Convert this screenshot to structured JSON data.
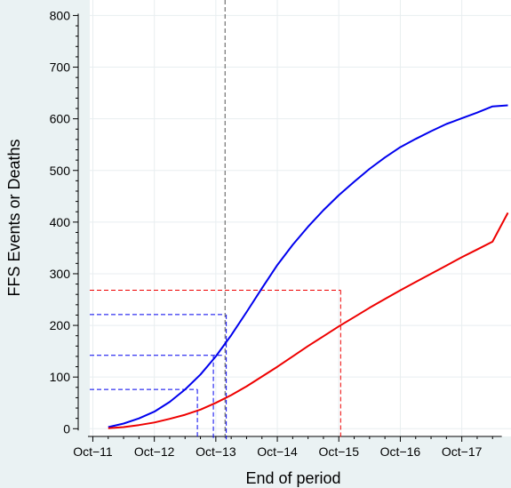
{
  "chart_data": {
    "type": "line",
    "title": "",
    "xlabel": "End of period",
    "ylabel": "FFS Events or Deaths",
    "xlim": [
      2011.7,
      2018.55
    ],
    "ylim": [
      -15,
      830
    ],
    "grid": true,
    "legend": "none",
    "x_ticks": [
      {
        "value": 2011.75,
        "label": "Oct−11"
      },
      {
        "value": 2012.75,
        "label": "Oct−12"
      },
      {
        "value": 2013.75,
        "label": "Oct−13"
      },
      {
        "value": 2014.75,
        "label": "Oct−14"
      },
      {
        "value": 2015.75,
        "label": "Oct−15"
      },
      {
        "value": 2016.75,
        "label": "Oct−16"
      },
      {
        "value": 2017.75,
        "label": "Oct−17"
      }
    ],
    "y_ticks": [
      0,
      100,
      200,
      300,
      400,
      500,
      600,
      700,
      800
    ],
    "x_minor_step": 0.25,
    "y_minor_step": 20,
    "series": [
      {
        "color": "#0000ee",
        "x": [
          2012.0,
          2012.25,
          2012.5,
          2012.75,
          2013.0,
          2013.25,
          2013.5,
          2013.75,
          2014.0,
          2014.25,
          2014.5,
          2014.75,
          2015.0,
          2015.25,
          2015.5,
          2015.75,
          2016.0,
          2016.25,
          2016.5,
          2016.75,
          2017.0,
          2017.25,
          2017.5,
          2017.75,
          2018.0,
          2018.25,
          2018.5
        ],
        "y": [
          3,
          10,
          20,
          33,
          52,
          76,
          105,
          140,
          181,
          226,
          272,
          317,
          356,
          391,
          423,
          452,
          478,
          503,
          525,
          545,
          561,
          576,
          590,
          601,
          612,
          624,
          626
        ]
      },
      {
        "color": "#ee0000",
        "x": [
          2012.0,
          2012.25,
          2012.5,
          2012.75,
          2013.0,
          2013.25,
          2013.5,
          2013.75,
          2014.0,
          2014.25,
          2014.5,
          2014.75,
          2015.0,
          2015.25,
          2015.5,
          2015.75,
          2016.0,
          2016.25,
          2016.5,
          2016.75,
          2017.0,
          2017.25,
          2017.5,
          2017.75,
          2018.0,
          2018.25,
          2018.5
        ],
        "y": [
          1,
          3,
          7,
          12,
          19,
          27,
          37,
          50,
          65,
          82,
          101,
          120,
          140,
          160,
          179,
          198,
          216,
          234,
          251,
          268,
          284,
          300,
          316,
          332,
          347,
          362,
          418
        ]
      }
    ],
    "reference_lines": [
      {
        "kind": "vline",
        "x": 2013.9,
        "y_to": 830,
        "color": "#555555"
      },
      {
        "kind": "hline",
        "y": 76,
        "x_to": 2013.45,
        "color": "#0000ee"
      },
      {
        "kind": "vline",
        "x": 2013.45,
        "y_to": 76,
        "color": "#0000ee"
      },
      {
        "kind": "hline",
        "y": 142,
        "x_to": 2013.85,
        "color": "#0000ee"
      },
      {
        "kind": "vline",
        "x": 2013.71,
        "y_to": 142,
        "color": "#0000ee"
      },
      {
        "kind": "hline",
        "y": 221,
        "x_to": 2013.9,
        "color": "#0000ee"
      },
      {
        "kind": "vline",
        "x": 2013.92,
        "y_to": 221,
        "color": "#0000ee"
      },
      {
        "kind": "hline",
        "y": 268,
        "x_to": 2015.78,
        "color": "#ee0000"
      },
      {
        "kind": "vline",
        "x": 2015.78,
        "y_to": 268,
        "color": "#ee0000"
      }
    ]
  }
}
